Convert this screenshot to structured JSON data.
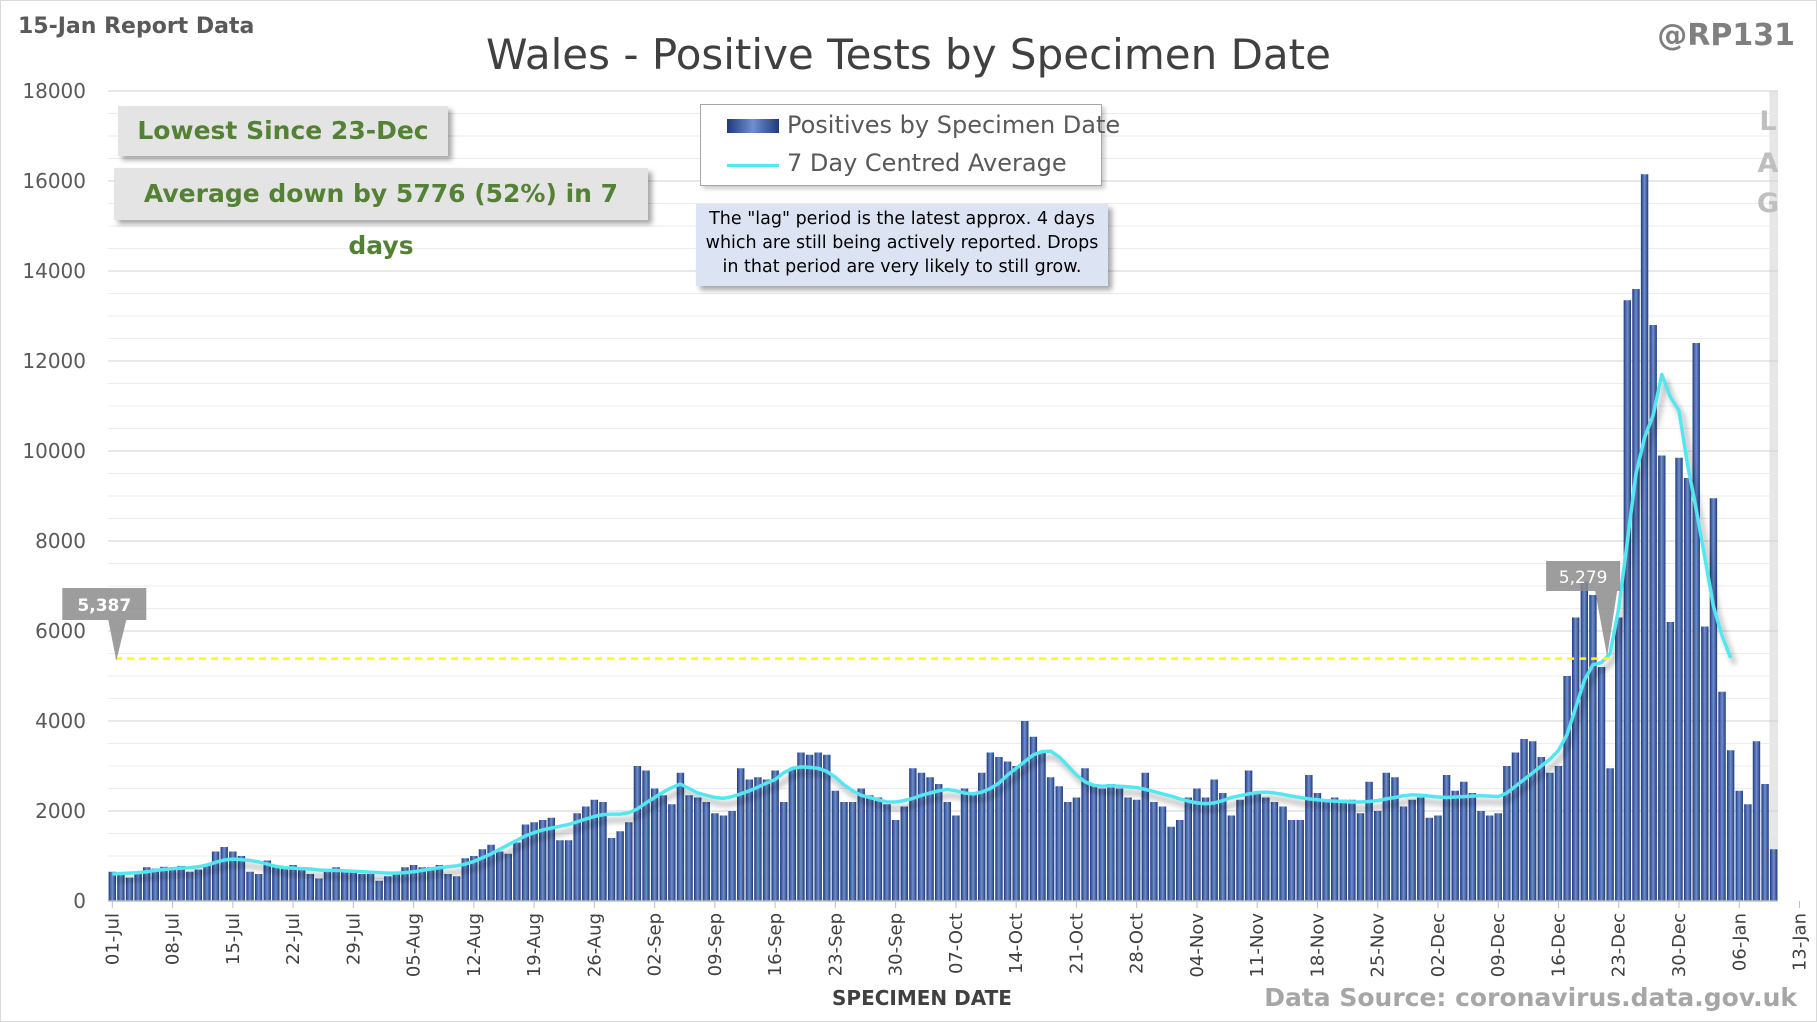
{
  "report_date": "15-Jan Report Data",
  "handle": "@RP131",
  "title": "Wales - Positive Tests by Specimen Date",
  "source": "Data Source: coronavirus.data.gov.uk",
  "callouts": {
    "lowest": "Lowest Since 23-Dec",
    "average": "Average down by 5776 (52%) in 7 days"
  },
  "legend": {
    "bars": "Positives by Specimen Date",
    "line": "7 Day Centred Average"
  },
  "lag_note": {
    "line1": "The \"lag\" period is the latest approx. 4 days",
    "line2": "which are still being actively reported.  Drops",
    "line3": "in that period are very likely to still grow."
  },
  "lag_label": [
    "L",
    "A",
    "G"
  ],
  "colors": {
    "bar_dark": "#1f3a78",
    "bar_light": "#6f8fd0",
    "average_line": "#55e6f0",
    "comparison_line": "#ffff00",
    "callout_text": "#548235",
    "lag_band": "#e6e6e6"
  },
  "chart_data": {
    "type": "bar",
    "xlabel": "SPECIMEN DATE",
    "ylabel": "",
    "ylim": [
      0,
      18000
    ],
    "yticks": [
      0,
      2000,
      4000,
      6000,
      8000,
      10000,
      12000,
      14000,
      16000,
      18000
    ],
    "grid": true,
    "legend_position": "top-center",
    "start_date": "01-Jul",
    "xtick_labels": [
      "01-Jul",
      "08-Jul",
      "15-Jul",
      "22-Jul",
      "29-Jul",
      "05-Aug",
      "12-Aug",
      "19-Aug",
      "26-Aug",
      "02-Sep",
      "09-Sep",
      "16-Sep",
      "23-Sep",
      "30-Sep",
      "07-Oct",
      "14-Oct",
      "21-Oct",
      "28-Oct",
      "04-Nov",
      "11-Nov",
      "18-Nov",
      "25-Nov",
      "02-Dec",
      "09-Dec",
      "16-Dec",
      "23-Dec",
      "30-Dec",
      "06-Jan",
      "13-Jan"
    ],
    "series": [
      {
        "name": "Positives by Specimen Date",
        "type": "bar",
        "values": [
          650,
          580,
          520,
          600,
          750,
          720,
          760,
          700,
          780,
          650,
          700,
          800,
          1100,
          1200,
          1100,
          1000,
          650,
          600,
          900,
          750,
          750,
          800,
          700,
          600,
          500,
          700,
          750,
          700,
          650,
          600,
          600,
          450,
          550,
          650,
          750,
          800,
          750,
          750,
          800,
          600,
          550,
          950,
          1000,
          1150,
          1250,
          1100,
          1050,
          1300,
          1700,
          1750,
          1800,
          1850,
          1350,
          1350,
          1950,
          2100,
          2250,
          2200,
          1400,
          1550,
          1750,
          3000,
          2900,
          2500,
          2350,
          2150,
          2850,
          2350,
          2300,
          2200,
          1950,
          1900,
          2000,
          2950,
          2700,
          2750,
          2700,
          2900,
          2200,
          2950,
          3300,
          3250,
          3300,
          3250,
          2450,
          2200,
          2200,
          2500,
          2350,
          2300,
          2150,
          1800,
          2100,
          2950,
          2850,
          2750,
          2600,
          2200,
          1900,
          2500,
          2400,
          2850,
          3300,
          3200,
          3100,
          3000,
          4000,
          3650,
          3300,
          2750,
          2550,
          2200,
          2300,
          2950,
          2600,
          2500,
          2600,
          2500,
          2300,
          2250,
          2850,
          2200,
          2100,
          1650,
          1800,
          2300,
          2500,
          2300,
          2700,
          2400,
          1900,
          2250,
          2900,
          2400,
          2300,
          2200,
          2100,
          1800,
          1800,
          2800,
          2400,
          2200,
          2300,
          2250,
          2250,
          1950,
          2650,
          2000,
          2850,
          2750,
          2100,
          2250,
          2300,
          1850,
          1900,
          2800,
          2450,
          2650,
          2400,
          2000,
          1900,
          1950,
          3000,
          3300,
          3600,
          3550,
          3200,
          2850,
          3000,
          5000,
          6300,
          7100,
          6800,
          5200,
          2950,
          6300,
          13350,
          13600,
          16150,
          12800,
          9900,
          6200,
          9850,
          9400,
          12400,
          6100,
          8950,
          4650,
          3350,
          2450,
          2150,
          3550,
          2600,
          1150
        ]
      },
      {
        "name": "7 Day Centred Average",
        "type": "line",
        "values": [
          600,
          610,
          620,
          630,
          650,
          680,
          700,
          720,
          730,
          740,
          760,
          800,
          860,
          910,
          930,
          920,
          900,
          870,
          820,
          770,
          740,
          730,
          720,
          710,
          690,
          680,
          680,
          670,
          660,
          650,
          640,
          630,
          620,
          620,
          630,
          650,
          680,
          710,
          740,
          760,
          780,
          820,
          880,
          960,
          1050,
          1150,
          1250,
          1350,
          1450,
          1520,
          1580,
          1620,
          1660,
          1700,
          1760,
          1820,
          1880,
          1920,
          1930,
          1930,
          1960,
          2050,
          2180,
          2300,
          2420,
          2520,
          2600,
          2500,
          2400,
          2350,
          2300,
          2280,
          2320,
          2380,
          2450,
          2530,
          2620,
          2700,
          2850,
          2950,
          2980,
          2970,
          2950,
          2880,
          2750,
          2580,
          2450,
          2350,
          2300,
          2250,
          2200,
          2200,
          2230,
          2280,
          2350,
          2400,
          2450,
          2480,
          2450,
          2400,
          2380,
          2420,
          2500,
          2620,
          2800,
          2950,
          3100,
          3250,
          3320,
          3330,
          3200,
          3000,
          2800,
          2650,
          2570,
          2550,
          2560,
          2550,
          2540,
          2520,
          2480,
          2430,
          2380,
          2330,
          2270,
          2220,
          2180,
          2160,
          2180,
          2230,
          2300,
          2340,
          2380,
          2410,
          2420,
          2400,
          2370,
          2330,
          2300,
          2270,
          2250,
          2230,
          2220,
          2210,
          2200,
          2200,
          2210,
          2230,
          2270,
          2300,
          2340,
          2360,
          2350,
          2330,
          2310,
          2300,
          2310,
          2320,
          2330,
          2340,
          2330,
          2320,
          2400,
          2550,
          2700,
          2850,
          3000,
          3150,
          3350,
          3700,
          4300,
          4900,
          5250,
          5300,
          5500,
          6500,
          8000,
          9500,
          10300,
          10800,
          11700,
          11200,
          10900,
          9700,
          8700,
          7650,
          6550,
          5900,
          5400
        ]
      }
    ],
    "annotations": [
      {
        "label": "5,279",
        "date": "22-Dec",
        "value": 5279
      },
      {
        "label": "5,387",
        "date": "05-Jan",
        "value": 5387
      }
    ],
    "lag_period": [
      "06-Jan",
      "13-Jan"
    ]
  }
}
